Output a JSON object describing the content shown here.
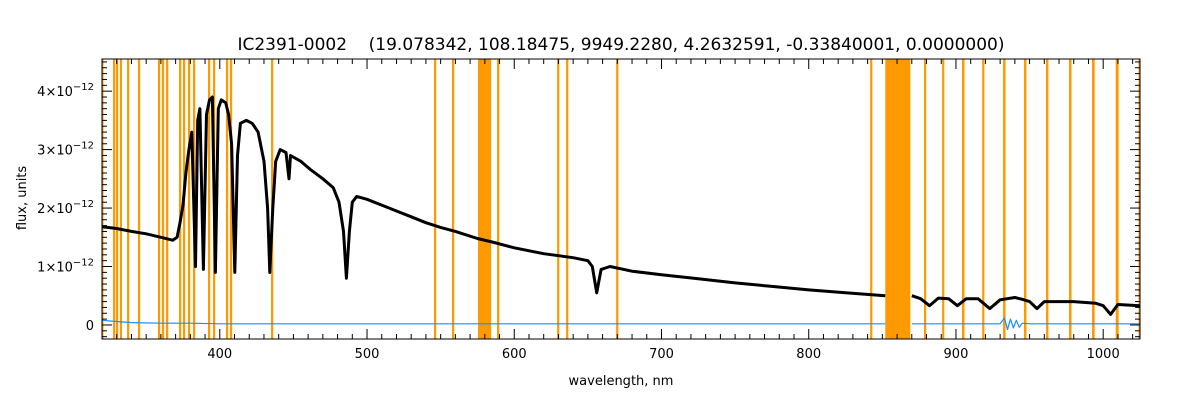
{
  "chart_data": {
    "type": "line",
    "title": "IC2391-0002    (19.078342, 108.18475, 9949.2280, 4.2632591, -0.33840001, 0.0000000)",
    "xlabel": "wavelength, nm",
    "ylabel": "flux, units",
    "xlim": [
      320,
      1025
    ],
    "ylim": [
      -2.4e-13,
      4.55e-12
    ],
    "x_ticks": [
      400,
      500,
      600,
      700,
      800,
      900,
      1000
    ],
    "x_tick_labels": [
      "400",
      "500",
      "600",
      "700",
      "800",
      "900",
      "1000"
    ],
    "y_ticks": [
      0,
      1e-12,
      2e-12,
      3e-12,
      4e-12
    ],
    "y_tick_labels": [
      {
        "mant": "0",
        "exp": ""
      },
      {
        "mant": "1×10",
        "exp": "−12"
      },
      {
        "mant": "2×10",
        "exp": "−12"
      },
      {
        "mant": "3×10",
        "exp": "−12"
      },
      {
        "mant": "4×10",
        "exp": "−12"
      }
    ],
    "grid": false,
    "colors": {
      "flux": "#000000",
      "error": "#1a8cff",
      "mask": "#ff9900"
    },
    "masked_regions_nm": [
      [
        319.5,
        321
      ],
      [
        327.5,
        329
      ],
      [
        329.5,
        331
      ],
      [
        332.2,
        333.6
      ],
      [
        337,
        338.5
      ],
      [
        344.4,
        345.9
      ],
      [
        358,
        359.5
      ],
      [
        360.7,
        362.2
      ],
      [
        363.5,
        365
      ],
      [
        372.3,
        373.8
      ],
      [
        375,
        376.5
      ],
      [
        378.4,
        379.9
      ],
      [
        381.8,
        383.3
      ],
      [
        392,
        393.5
      ],
      [
        395.4,
        396.9
      ],
      [
        404.2,
        405.7
      ],
      [
        406.9,
        408.4
      ],
      [
        434.8,
        436.3
      ],
      [
        545.5,
        547
      ],
      [
        557.7,
        559.2
      ],
      [
        575.4,
        584.3
      ],
      [
        588.3,
        589.8
      ],
      [
        629.1,
        630.6
      ],
      [
        635.2,
        636.7
      ],
      [
        669.2,
        670.7
      ],
      [
        841.7,
        843.2
      ],
      [
        852,
        869
      ],
      [
        878.3,
        879.8
      ],
      [
        890.6,
        892.1
      ],
      [
        904.1,
        905.8
      ],
      [
        917.8,
        919.3
      ],
      [
        932,
        933.7
      ],
      [
        946.2,
        947.9
      ],
      [
        961.2,
        962.8
      ],
      [
        976.8,
        978.5
      ],
      [
        992.4,
        994.2
      ],
      [
        1008.5,
        1010.5
      ],
      [
        1024,
        1025
      ]
    ],
    "series": [
      {
        "role": "flux",
        "points_1e-12": [
          [
            320,
            1.68
          ],
          [
            330,
            1.65
          ],
          [
            340,
            1.6
          ],
          [
            350,
            1.56
          ],
          [
            360,
            1.5
          ],
          [
            368,
            1.45
          ],
          [
            371,
            1.5
          ],
          [
            373,
            1.75
          ],
          [
            375,
            2.05
          ],
          [
            377,
            2.6
          ],
          [
            379,
            3.0
          ],
          [
            381,
            3.3
          ],
          [
            383.5,
            1.0
          ],
          [
            385,
            3.5
          ],
          [
            386.5,
            3.7
          ],
          [
            388.9,
            0.95
          ],
          [
            391,
            3.6
          ],
          [
            393,
            3.85
          ],
          [
            395,
            3.9
          ],
          [
            397,
            0.9
          ],
          [
            399,
            3.7
          ],
          [
            401,
            3.85
          ],
          [
            404,
            3.8
          ],
          [
            406,
            3.6
          ],
          [
            408,
            3.1
          ],
          [
            410.2,
            0.9
          ],
          [
            412,
            2.9
          ],
          [
            414,
            3.45
          ],
          [
            418,
            3.5
          ],
          [
            422,
            3.45
          ],
          [
            426,
            3.3
          ],
          [
            430,
            2.8
          ],
          [
            432.5,
            2.0
          ],
          [
            434,
            0.9
          ],
          [
            436,
            2.0
          ],
          [
            438,
            2.8
          ],
          [
            441,
            3.0
          ],
          [
            445,
            2.95
          ],
          [
            447,
            2.5
          ],
          [
            448,
            2.9
          ],
          [
            455,
            2.8
          ],
          [
            462,
            2.65
          ],
          [
            470,
            2.5
          ],
          [
            477,
            2.35
          ],
          [
            481,
            2.1
          ],
          [
            484,
            1.6
          ],
          [
            486,
            0.8
          ],
          [
            488,
            1.6
          ],
          [
            490,
            2.1
          ],
          [
            493,
            2.2
          ],
          [
            500,
            2.15
          ],
          [
            510,
            2.05
          ],
          [
            520,
            1.95
          ],
          [
            530,
            1.85
          ],
          [
            540,
            1.75
          ],
          [
            550,
            1.67
          ],
          [
            560,
            1.6
          ],
          [
            575,
            1.48
          ],
          [
            585,
            1.42
          ],
          [
            600,
            1.32
          ],
          [
            620,
            1.22
          ],
          [
            640,
            1.15
          ],
          [
            650,
            1.1
          ],
          [
            653,
            1.0
          ],
          [
            656,
            0.55
          ],
          [
            659,
            0.95
          ],
          [
            665,
            1.0
          ],
          [
            680,
            0.92
          ],
          [
            700,
            0.86
          ],
          [
            725,
            0.79
          ],
          [
            750,
            0.72
          ],
          [
            775,
            0.66
          ],
          [
            800,
            0.6
          ],
          [
            825,
            0.55
          ],
          [
            852,
            0.5
          ],
          [
            null,
            null
          ],
          [
            870,
            0.5
          ],
          [
            876,
            0.45
          ],
          [
            882,
            0.33
          ],
          [
            888,
            0.46
          ],
          [
            895,
            0.45
          ],
          [
            901,
            0.33
          ],
          [
            907,
            0.45
          ],
          [
            915,
            0.45
          ],
          [
            923,
            0.28
          ],
          [
            930,
            0.43
          ],
          [
            940,
            0.47
          ],
          [
            945,
            0.44
          ],
          [
            950,
            0.4
          ],
          [
            955,
            0.28
          ],
          [
            960,
            0.4
          ],
          [
            980,
            0.4
          ],
          [
            995,
            0.37
          ],
          [
            1000,
            0.33
          ],
          [
            1005,
            0.18
          ],
          [
            1010,
            0.35
          ],
          [
            1025,
            0.33
          ]
        ]
      },
      {
        "role": "error",
        "points_1e-12": [
          [
            320,
            0.08
          ],
          [
            330,
            0.06
          ],
          [
            340,
            0.04
          ],
          [
            360,
            0.03
          ],
          [
            380,
            0.03
          ],
          [
            400,
            0.02
          ],
          [
            500,
            0.02
          ],
          [
            700,
            0.02
          ],
          [
            852,
            0.02
          ],
          [
            null,
            null
          ],
          [
            870,
            0.02
          ],
          [
            930,
            0.02
          ],
          [
            933,
            0.12
          ],
          [
            935,
            -0.08
          ],
          [
            937,
            0.1
          ],
          [
            939,
            -0.05
          ],
          [
            941,
            0.08
          ],
          [
            943,
            -0.04
          ],
          [
            945,
            0.03
          ],
          [
            950,
            0.02
          ],
          [
            1025,
            0.02
          ]
        ]
      }
    ]
  }
}
